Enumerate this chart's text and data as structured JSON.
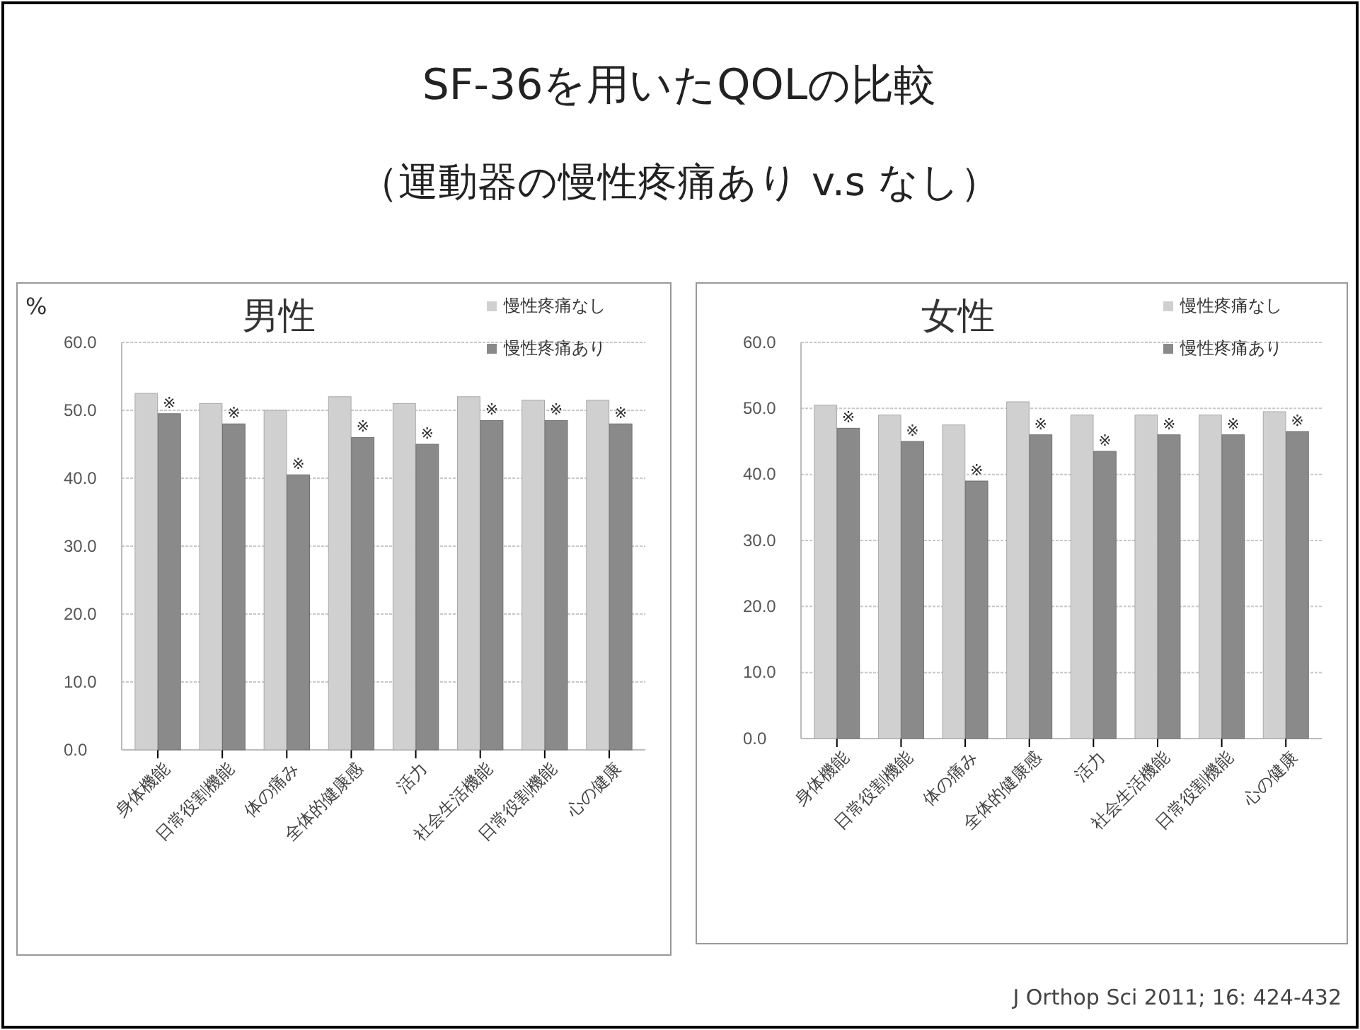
{
  "chart_data": [
    {
      "type": "bar",
      "title": "SF-36を用いたQOLの比較",
      "subtitle": "（運動器の慢性疼痛あり v.s なし）",
      "legend_title": "男性",
      "ylabel": "%",
      "categories": [
        "身体機能",
        "日常役割機能",
        "体の痛み",
        "全体的健康感",
        "活力",
        "社会生活機能",
        "日常役割機能",
        "心の健康"
      ],
      "series": [
        {
          "name": "慢性疼痛なし",
          "color": "#d0d0d0",
          "values": [
            52.5,
            51,
            50,
            52,
            51,
            52,
            51.5,
            51.5
          ]
        },
        {
          "name": "慢性疼痛あり",
          "color": "#8a8a8a",
          "values": [
            49.5,
            48,
            40.5,
            46,
            45,
            48.5,
            48.5,
            48
          ],
          "value_labels": [
            "※",
            "※",
            "※",
            "※",
            "※",
            "※",
            "※",
            "※"
          ]
        }
      ],
      "ylim": [
        0,
        60
      ],
      "yticks": [
        {
          "value": 0,
          "label": "0.0"
        },
        {
          "value": 10,
          "label": "10.0"
        },
        {
          "value": 20,
          "label": "20.0"
        },
        {
          "value": 30,
          "label": "30.0"
        },
        {
          "value": 40,
          "label": "40.0"
        },
        {
          "value": 50,
          "label": "50.0"
        },
        {
          "value": 60,
          "label": "60.0"
        }
      ],
      "grid": "y",
      "legend": "top right"
    },
    {
      "type": "bar",
      "legend_title": "女性",
      "categories": [
        "身体機能",
        "日常役割機能",
        "体の痛み",
        "全体的健康感",
        "活力",
        "社会生活機能",
        "日常役割機能",
        "心の健康"
      ],
      "series": [
        {
          "name": "慢性疼痛なし",
          "color": "#d0d0d0",
          "values": [
            50.5,
            49,
            47.5,
            51,
            49,
            49,
            49,
            49.5
          ]
        },
        {
          "name": "慢性疼痛あり",
          "color": "#8a8a8a",
          "values": [
            47,
            45,
            39,
            46,
            43.5,
            46,
            46,
            46.5
          ],
          "value_labels": [
            "※",
            "※",
            "※",
            "※",
            "※",
            "※",
            "※",
            "※"
          ]
        }
      ],
      "ylim": [
        0,
        60
      ],
      "yticks": [
        {
          "value": 0,
          "label": "0.0"
        },
        {
          "value": 10,
          "label": "10.0"
        },
        {
          "value": 20,
          "label": "20.0"
        },
        {
          "value": 30,
          "label": "30.0"
        },
        {
          "value": 40,
          "label": "40.0"
        },
        {
          "value": 50,
          "label": "50.0"
        },
        {
          "value": 60,
          "label": "60.0"
        }
      ],
      "grid": "y",
      "legend": "top right",
      "annotations": [
        "J Orthop Sci 2011; 16: 424-432"
      ]
    }
  ]
}
